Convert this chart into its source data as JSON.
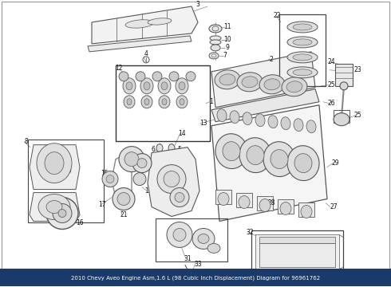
{
  "title": "2010 Chevy Aveo Engine Asm,1.6 L (98 Cubic Inch Displacement) Diagram for 96961762",
  "bg_color": "#ffffff",
  "fig_width": 4.9,
  "fig_height": 3.6,
  "dpi": 100,
  "title_bar_color": "#1a3a6b",
  "title_text_color": "#ffffff",
  "title_fontsize": 5.0,
  "line_color": "#555555",
  "number_color": "#111111",
  "number_fontsize": 5.5,
  "border_color": "#888888"
}
